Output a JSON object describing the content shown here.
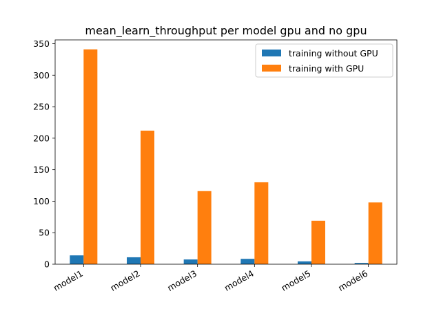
{
  "chart_data": {
    "type": "bar",
    "title": "mean_learn_throughput per model gpu and no gpu",
    "xlabel": "",
    "ylabel": "",
    "categories": [
      "model1",
      "model2",
      "model3",
      "model4",
      "model5",
      "model6"
    ],
    "series": [
      {
        "name": "training without GPU",
        "values": [
          14,
          11,
          7.5,
          8.5,
          4.5,
          2
        ],
        "color": "#1f77b4"
      },
      {
        "name": "training with GPU",
        "values": [
          341,
          212,
          116,
          130,
          69,
          98
        ],
        "color": "#ff7f0e"
      }
    ],
    "ylim": [
      0,
      356
    ],
    "yticks": [
      0,
      50,
      100,
      150,
      200,
      250,
      300,
      350
    ],
    "grid": false,
    "legend_position": "top-right"
  }
}
